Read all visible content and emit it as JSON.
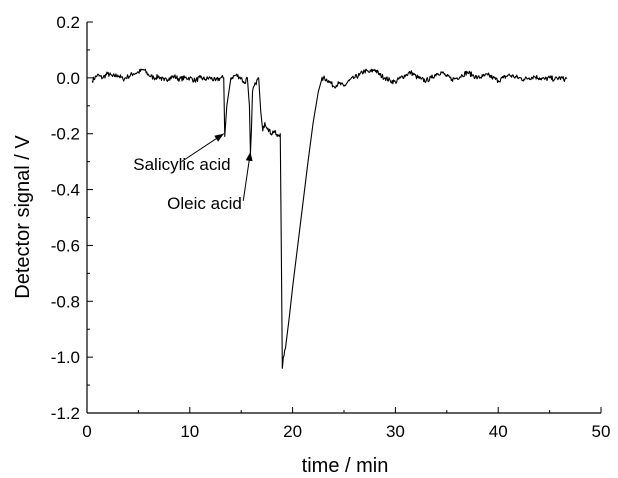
{
  "chart_data": {
    "type": "line",
    "xlabel": "time / min",
    "ylabel": "Detector signal / V",
    "xlim": [
      0,
      50
    ],
    "ylim": [
      -1.2,
      0.2
    ],
    "x_ticks": [
      0,
      10,
      20,
      30,
      40,
      50
    ],
    "y_ticks": [
      0.2,
      0.0,
      -0.2,
      -0.4,
      -0.6,
      -0.8,
      -1.0,
      -1.2
    ],
    "x_tick_labels": [
      "0",
      "10",
      "20",
      "30",
      "40",
      "50"
    ],
    "y_tick_labels": [
      "0.2",
      "0.0",
      "-0.2",
      "-0.4",
      "-0.6",
      "-0.8",
      "-1.0",
      "-1.2"
    ],
    "grid": false,
    "series": [
      {
        "x": [
          0.5,
          1.0,
          1.5,
          2.0,
          2.5,
          3.0,
          3.5,
          4.0,
          4.5,
          5.0,
          5.5,
          6.0,
          6.5,
          7.0,
          7.5,
          8.0,
          8.5,
          9.0,
          9.5,
          10.0,
          10.5,
          11.0,
          11.5,
          12.0,
          12.5,
          13.0,
          13.3,
          13.4,
          13.6,
          14.0,
          14.5,
          15.0,
          15.3,
          15.6,
          15.8,
          15.9,
          16.0,
          16.1,
          16.4,
          16.7,
          16.9,
          17.1,
          17.3,
          17.6,
          17.9,
          18.2,
          18.5,
          18.8,
          18.9,
          19.0,
          19.1,
          19.3,
          19.7,
          20.0,
          20.5,
          21.0,
          21.5,
          22.0,
          22.5,
          22.8,
          23.0,
          23.5,
          24.0,
          24.5,
          25.0,
          25.5,
          26.0,
          26.5,
          27.0,
          27.5,
          28.0,
          28.5,
          29.0,
          29.5,
          30.0,
          30.5,
          31.0,
          31.5,
          32.0,
          32.5,
          33.0,
          33.5,
          34.0,
          34.5,
          35.0,
          35.5,
          36.0,
          36.5,
          37.0,
          37.5,
          38.0,
          38.5,
          39.0,
          39.5,
          40.0,
          40.5,
          41.0,
          41.5,
          42.0,
          42.5,
          43.0,
          43.5,
          44.0,
          44.5,
          45.0,
          45.5,
          46.0,
          46.5,
          46.7
        ],
        "y": [
          -0.01,
          0.01,
          0.0,
          0.015,
          0.005,
          0.01,
          -0.005,
          0.005,
          0.015,
          0.02,
          0.03,
          0.01,
          0.0,
          0.005,
          -0.01,
          0.0,
          0.005,
          -0.005,
          0.0,
          0.0,
          -0.01,
          0.0,
          -0.005,
          0.0,
          -0.01,
          0.0,
          0.0,
          -0.21,
          -0.1,
          0.0,
          0.01,
          0.0,
          -0.02,
          0.0,
          -0.1,
          -0.27,
          -0.18,
          -0.05,
          -0.02,
          0.0,
          -0.12,
          -0.19,
          -0.16,
          -0.18,
          -0.2,
          -0.19,
          -0.21,
          -0.2,
          -0.6,
          -1.04,
          -1.0,
          -0.97,
          -0.85,
          -0.75,
          -0.6,
          -0.45,
          -0.3,
          -0.16,
          -0.05,
          -0.01,
          0.0,
          -0.01,
          -0.03,
          -0.02,
          -0.03,
          -0.01,
          0.0,
          0.01,
          0.025,
          0.02,
          0.03,
          0.01,
          0.0,
          -0.01,
          -0.015,
          0.0,
          0.01,
          0.02,
          0.005,
          -0.005,
          -0.01,
          0.0,
          0.015,
          0.02,
          0.005,
          -0.005,
          0.0,
          0.01,
          0.02,
          0.01,
          0.0,
          0.005,
          0.01,
          0.0,
          -0.01,
          0.0,
          0.01,
          0.005,
          0.0,
          -0.005,
          0.0,
          0.005,
          0.0,
          -0.005,
          0.0,
          -0.005,
          0.0,
          -0.005,
          0.0
        ]
      }
    ],
    "annotations": [
      {
        "text": "Salicylic acid",
        "x_text": 4.5,
        "y_text": -0.33,
        "x_tip": 13.3,
        "y_tip": -0.2,
        "x_tail": 9.2,
        "y_tail": -0.3
      },
      {
        "text": "Oleic acid",
        "x_text": 7.8,
        "y_text": -0.47,
        "x_tip": 15.9,
        "y_tip": -0.265,
        "x_tail": 15.2,
        "y_tail": -0.44
      }
    ]
  }
}
